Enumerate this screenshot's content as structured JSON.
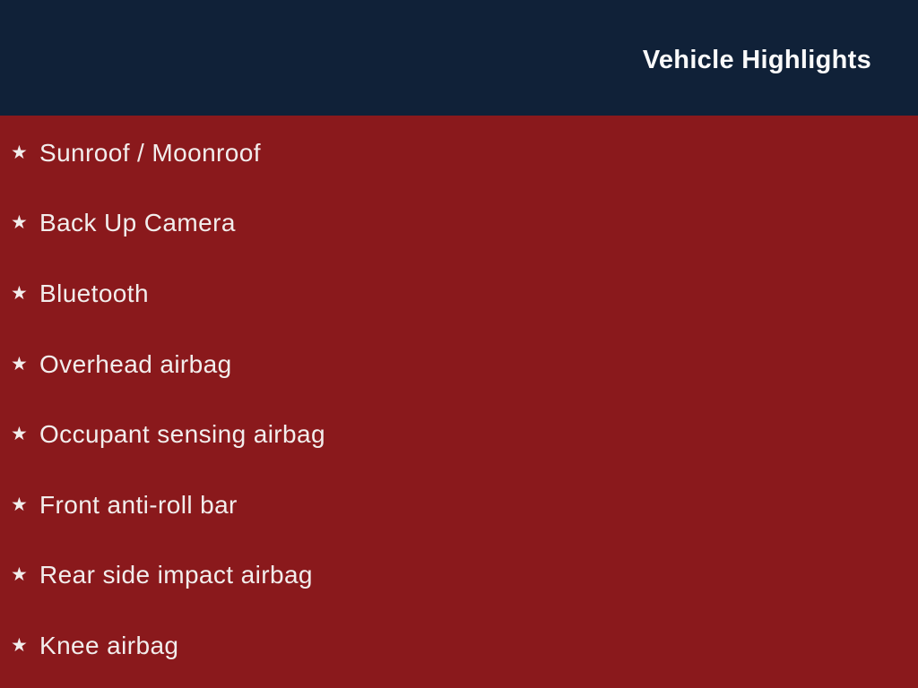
{
  "header": {
    "title": "Vehicle Highlights"
  },
  "list": {
    "bullet_glyph": "★",
    "items": [
      {
        "label": "Sunroof / Moonroof"
      },
      {
        "label": "Back Up Camera"
      },
      {
        "label": "Bluetooth"
      },
      {
        "label": "Overhead airbag"
      },
      {
        "label": "Occupant sensing airbag"
      },
      {
        "label": "Front anti-roll bar"
      },
      {
        "label": "Rear side impact airbag"
      },
      {
        "label": "Knee airbag"
      }
    ]
  },
  "colors": {
    "header_bg": "#102138",
    "body_bg": "#8A191C",
    "title_text": "#FAFAFA",
    "item_text": "#F2EDEC"
  }
}
